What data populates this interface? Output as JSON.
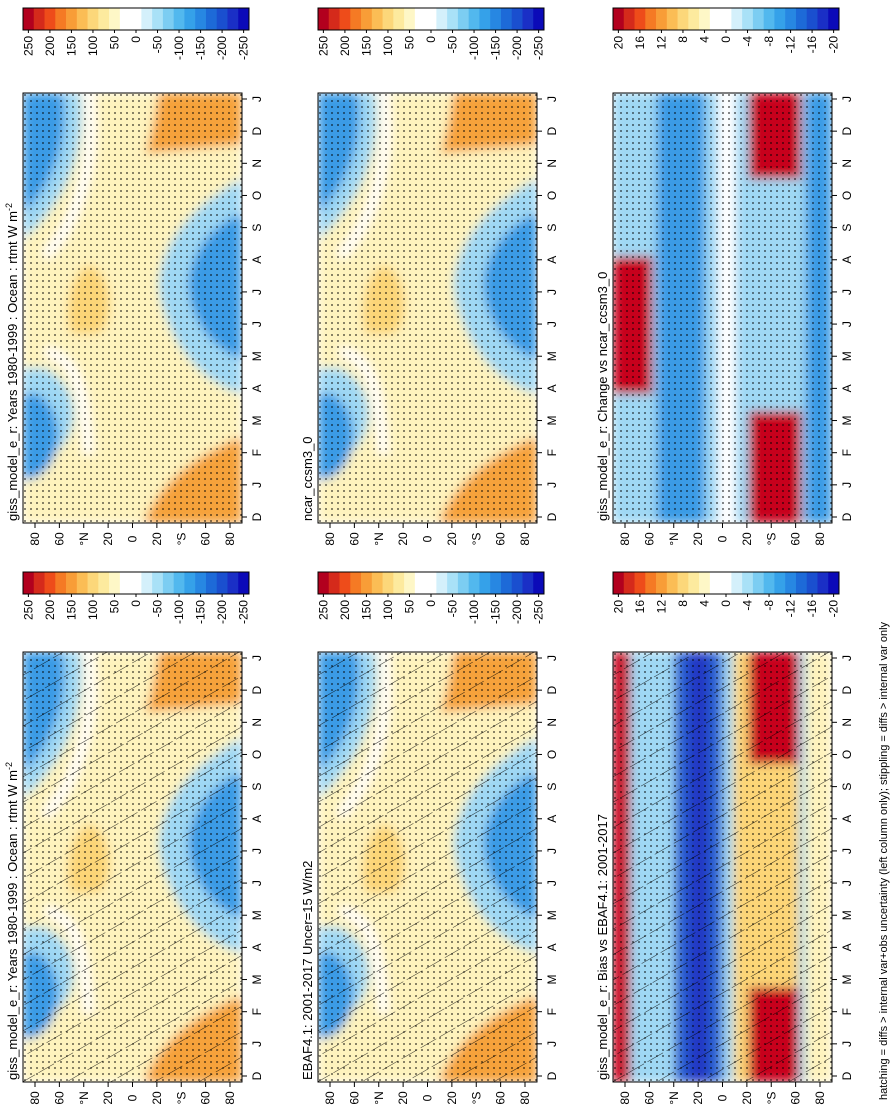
{
  "chart_data": [
    {
      "type": "heatmap",
      "title": "giss_model_e_r: Years 1980-1999 : Ocean : rtmt W m",
      "title_superscript": "-2",
      "x_ticks": [
        "D",
        "J",
        "F",
        "M",
        "A",
        "M",
        "J",
        "J",
        "A",
        "S",
        "O",
        "N",
        "D",
        "J"
      ],
      "y_ticks": [
        "80",
        "60",
        "°N",
        "20",
        "0",
        "20",
        "°S",
        "60",
        "80"
      ],
      "colorbar": {
        "labels": [
          "250",
          "200",
          "150",
          "100",
          "50",
          "0",
          "-50",
          "-100",
          "-150",
          "-200",
          "-250"
        ],
        "colors": [
          "#b2001e",
          "#d52a1b",
          "#ee4c1a",
          "#f57a24",
          "#f89d37",
          "#fbbd55",
          "#fcd77a",
          "#fdea9e",
          "#fef7c7",
          "#ffffff",
          "#ffffff",
          "#d4f0fb",
          "#a9e1f7",
          "#7ccdf2",
          "#52b8ee",
          "#35a1e9",
          "#2787e2",
          "#1d6ad8",
          "#1a4fcf",
          "#1a2fc6",
          "#0b0ab8"
        ]
      },
      "overlays": [
        "stippling",
        "hatching"
      ]
    },
    {
      "type": "heatmap",
      "title": "ncar_ccsm3_0",
      "x_ticks": [
        "D",
        "J",
        "F",
        "M",
        "A",
        "M",
        "J",
        "J",
        "A",
        "S",
        "O",
        "N",
        "D",
        "J"
      ],
      "y_ticks": [
        "80",
        "60",
        "°N",
        "20",
        "0",
        "20",
        "°S",
        "60",
        "80"
      ],
      "colorbar": {
        "labels": [
          "250",
          "200",
          "150",
          "100",
          "50",
          "0",
          "-50",
          "-100",
          "-150",
          "-200",
          "-250"
        ]
      },
      "overlays": [
        "stippling"
      ]
    },
    {
      "type": "heatmap",
      "title": "EBAF4.1: 2001-2017 Uncer=15 W/m2",
      "x_ticks": [
        "D",
        "J",
        "F",
        "M",
        "A",
        "M",
        "J",
        "J",
        "A",
        "S",
        "O",
        "N",
        "D",
        "J"
      ],
      "y_ticks": [
        "80",
        "60",
        "°N",
        "20",
        "0",
        "20",
        "°S",
        "60",
        "80"
      ],
      "colorbar": {
        "labels": [
          "250",
          "200",
          "150",
          "100",
          "50",
          "0",
          "-50",
          "-100",
          "-150",
          "-200",
          "-250"
        ]
      },
      "overlays": [
        "stippling",
        "hatching"
      ]
    },
    {
      "type": "heatmap",
      "title": "giss_model_e_r: Bias vs EBAF4.1: 2001-2017",
      "x_ticks": [
        "D",
        "J",
        "F",
        "M",
        "A",
        "M",
        "J",
        "J",
        "A",
        "S",
        "O",
        "N",
        "D",
        "J"
      ],
      "y_ticks": [
        "80",
        "60",
        "°N",
        "20",
        "0",
        "20",
        "°S",
        "60",
        "80"
      ],
      "colorbar": {
        "labels": [
          "20",
          "16",
          "12",
          "8",
          "4",
          "0",
          "-4",
          "-8",
          "-12",
          "-16",
          "-20"
        ]
      },
      "overlays": [
        "stippling",
        "hatching"
      ]
    },
    {
      "type": "heatmap",
      "title": "giss_model_e_r: Change vs ncar_ccsm3_0",
      "x_ticks": [
        "D",
        "J",
        "F",
        "M",
        "A",
        "M",
        "J",
        "J",
        "A",
        "S",
        "O",
        "N",
        "D",
        "J"
      ],
      "y_ticks": [
        "80",
        "60",
        "°N",
        "20",
        "0",
        "20",
        "°S",
        "60",
        "80"
      ],
      "colorbar": {
        "labels": [
          "20",
          "16",
          "12",
          "8",
          "4",
          "0",
          "-4",
          "-8",
          "-12",
          "-16",
          "-20"
        ]
      },
      "overlays": [
        "stippling"
      ]
    }
  ],
  "footnote": "hatching = diffs > internal var+obs uncertainty (left column only); stippling = diffs > internal var only",
  "colors": {
    "red": "#c7021b",
    "orange": "#f6a23a",
    "yellow": "#fcd577",
    "paleyellow": "#fef3bd",
    "white": "#ffffff",
    "lightblue": "#9fd8f4",
    "blue": "#3a9be6",
    "darkblue": "#2a64d3",
    "navy": "#2339c4"
  }
}
